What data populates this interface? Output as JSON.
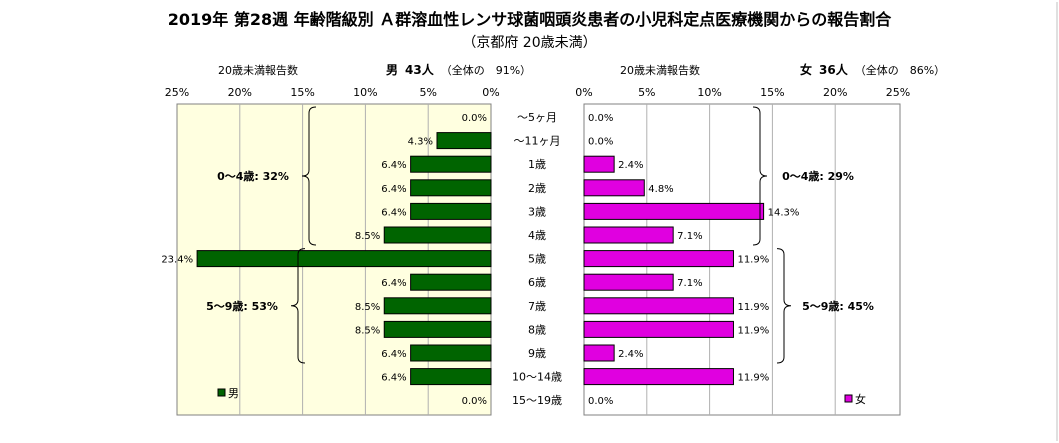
{
  "header": {
    "title": "2019年 第28週 年齢階級別 Ａ群溶血性レンサ球菌咽頭炎患者の小児科定点医療機関からの報告割合",
    "subtitle": "（京都府 20歳未満）",
    "left_caption": "20歳未満報告数",
    "left_sex": "男",
    "left_count": "43人",
    "left_share": "（全体の　91%）",
    "right_caption": "20歳未満報告数",
    "right_sex": "女",
    "right_count": "36人",
    "right_share": "（全体の　86%）"
  },
  "colors": {
    "male": "#006400",
    "female": "#e000e0",
    "panel_left": "#ffffe0",
    "panel_right": "#ffffff"
  },
  "chart_data": {
    "type": "bar",
    "orientation": "horizontal-butterfly",
    "categories": [
      "～5ヶ月",
      "～11ヶ月",
      "1歳",
      "2歳",
      "3歳",
      "4歳",
      "5歳",
      "6歳",
      "7歳",
      "8歳",
      "9歳",
      "10～14歳",
      "15～19歳"
    ],
    "series": [
      {
        "name": "男",
        "values": [
          0.0,
          4.3,
          6.4,
          6.4,
          6.4,
          8.5,
          23.4,
          6.4,
          8.5,
          8.5,
          6.4,
          6.4,
          0.0
        ],
        "labels": [
          "0.0%",
          "4.3%",
          "6.4%",
          "6.4%",
          "6.4%",
          "8.5%",
          "23.4%",
          "6.4%",
          "8.5%",
          "8.5%",
          "6.4%",
          "6.4%",
          "0.0%"
        ]
      },
      {
        "name": "女",
        "values": [
          0.0,
          0.0,
          2.4,
          4.8,
          14.3,
          7.1,
          11.9,
          7.1,
          11.9,
          11.9,
          2.4,
          11.9,
          0.0
        ],
        "labels": [
          "0.0%",
          "0.0%",
          "2.4%",
          "4.8%",
          "14.3%",
          "7.1%",
          "11.9%",
          "7.1%",
          "11.9%",
          "11.9%",
          "2.4%",
          "11.9%",
          "0.0%"
        ]
      }
    ],
    "xlim": [
      0,
      25
    ],
    "x_ticks": [
      "0%",
      "5%",
      "10%",
      "15%",
      "20%",
      "25%"
    ],
    "grid": "vertical",
    "brackets": {
      "male": [
        {
          "label": "0～4歳: 32%",
          "from": 0,
          "to": 5
        },
        {
          "label": "5～9歳: 53%",
          "from": 6,
          "to": 10
        }
      ],
      "female": [
        {
          "label": "0～4歳: 29%",
          "from": 0,
          "to": 5
        },
        {
          "label": "5～9歳: 45%",
          "from": 6,
          "to": 10
        }
      ]
    },
    "legend": {
      "male": "男",
      "female": "女",
      "male_position": "bottom-left",
      "female_position": "bottom-right"
    }
  }
}
